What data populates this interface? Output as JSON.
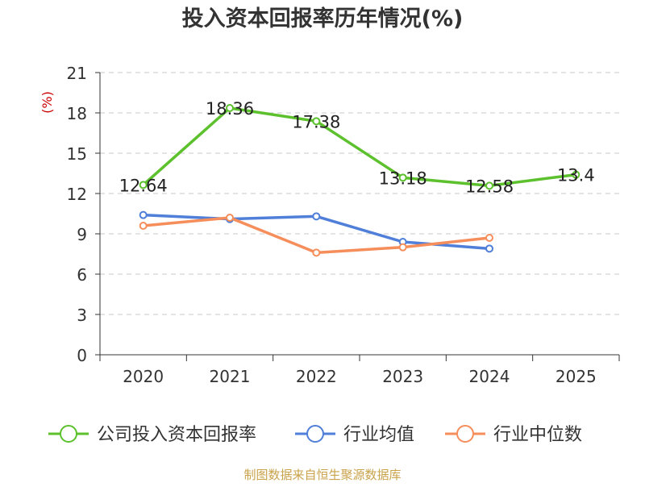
{
  "chart_data": {
    "type": "line",
    "title": "投入资本回报率历年情况(%)",
    "ylabel": "(%)",
    "xlabel": "",
    "ylim": [
      0,
      21
    ],
    "yticks": [
      0,
      3,
      6,
      9,
      12,
      15,
      18,
      21
    ],
    "categories": [
      "2020",
      "2021",
      "2022",
      "2023",
      "2024",
      "2025"
    ],
    "grid": true,
    "legend_position": "bottom",
    "series": [
      {
        "name": "公司投入资本回报率",
        "color": "#5cc12d",
        "values": [
          12.64,
          18.36,
          17.38,
          13.18,
          12.58,
          13.4
        ],
        "labels": [
          "12.64",
          "18.36",
          "17.38",
          "13.18",
          "12.58",
          "13.4"
        ],
        "show_labels": true
      },
      {
        "name": "行业均值",
        "color": "#4f7fd8",
        "values": [
          10.4,
          10.1,
          10.3,
          8.4,
          7.9,
          null
        ],
        "show_labels": false
      },
      {
        "name": "行业中位数",
        "color": "#f58e5b",
        "values": [
          9.6,
          10.2,
          7.6,
          8.0,
          8.7,
          null
        ],
        "show_labels": false
      }
    ],
    "source": "制图数据来自恒生聚源数据库"
  }
}
